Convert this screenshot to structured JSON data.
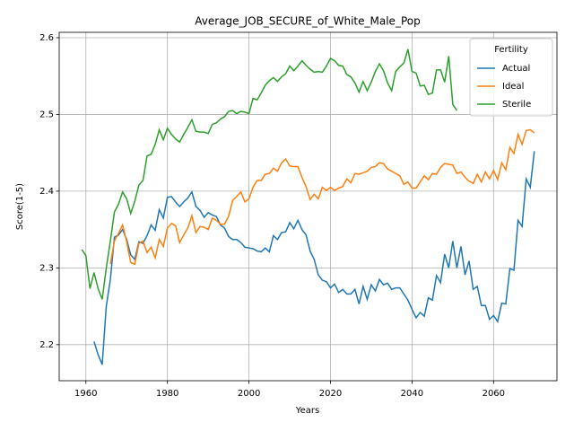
{
  "chart_data": {
    "type": "line",
    "title": "Average_JOB_SECURE_of_White_Male_Pop",
    "xlabel": "Years",
    "ylabel": "Score(1-5)",
    "x": [
      1959,
      1960,
      1961,
      1962,
      1963,
      1964,
      1965,
      1966,
      1967,
      1968,
      1969,
      1970,
      1971,
      1972,
      1973,
      1974,
      1975,
      1976,
      1977,
      1978,
      1979,
      1980,
      1981,
      1982,
      1983,
      1984,
      1985,
      1986,
      1987,
      1988,
      1989,
      1990,
      1991,
      1992,
      1993,
      1994,
      1995,
      1996,
      1997,
      1998,
      1999,
      2000,
      2001,
      2002,
      2003,
      2004,
      2005,
      2006,
      2007,
      2008,
      2009,
      2010,
      2011,
      2012,
      2013,
      2014,
      2015,
      2016,
      2017,
      2018,
      2019,
      2020,
      2021,
      2022,
      2023,
      2024,
      2025,
      2026,
      2027,
      2028,
      2029,
      2030,
      2031,
      2032,
      2033,
      2034,
      2035,
      2036,
      2037,
      2038,
      2039,
      2040,
      2041,
      2042,
      2043,
      2044,
      2045,
      2046,
      2047,
      2048,
      2049,
      2050,
      2051,
      2052,
      2053,
      2054,
      2055,
      2056,
      2057,
      2058,
      2059,
      2060,
      2061,
      2062,
      2063,
      2064,
      2065,
      2066,
      2067,
      2068,
      2069,
      2070
    ],
    "series": [
      {
        "name": "Actual",
        "color": "#1f77b4",
        "values": [
          null,
          null,
          null,
          2.204,
          2.187,
          2.174,
          2.25,
          2.285,
          2.34,
          2.343,
          2.35,
          2.337,
          2.317,
          2.311,
          2.334,
          2.332,
          2.342,
          2.356,
          2.349,
          2.376,
          2.365,
          2.392,
          2.393,
          2.386,
          2.38,
          2.386,
          2.391,
          2.399,
          2.38,
          2.375,
          2.366,
          2.372,
          2.369,
          2.367,
          2.356,
          2.352,
          2.341,
          2.337,
          2.337,
          2.333,
          2.327,
          2.326,
          2.325,
          2.322,
          2.321,
          2.326,
          2.321,
          2.342,
          2.337,
          2.346,
          2.347,
          2.359,
          2.351,
          2.362,
          2.35,
          2.343,
          2.322,
          2.311,
          2.291,
          2.284,
          2.282,
          2.274,
          2.279,
          2.268,
          2.272,
          2.266,
          2.266,
          2.272,
          2.253,
          2.276,
          2.259,
          2.278,
          2.27,
          2.285,
          2.278,
          2.28,
          2.272,
          2.274,
          2.274,
          2.266,
          2.258,
          2.246,
          2.235,
          2.242,
          2.237,
          2.261,
          2.258,
          2.29,
          2.281,
          2.318,
          2.3,
          2.335,
          2.3,
          2.328,
          2.291,
          2.309,
          2.272,
          2.276,
          2.251,
          2.251,
          2.233,
          2.238,
          2.23,
          2.254,
          2.253,
          2.299,
          2.297,
          2.362,
          2.354,
          2.416,
          2.405,
          2.452
        ]
      },
      {
        "name": "Ideal",
        "color": "#ff7f0e",
        "values": [
          null,
          null,
          null,
          null,
          null,
          null,
          null,
          2.305,
          2.335,
          2.345,
          2.356,
          2.334,
          2.307,
          2.305,
          2.332,
          2.335,
          2.32,
          2.327,
          2.313,
          2.337,
          2.328,
          2.352,
          2.358,
          2.355,
          2.333,
          2.343,
          2.352,
          2.368,
          2.346,
          2.354,
          2.353,
          2.35,
          2.365,
          2.362,
          2.357,
          2.357,
          2.367,
          2.388,
          2.393,
          2.399,
          2.386,
          2.39,
          2.405,
          2.414,
          2.414,
          2.422,
          2.423,
          2.43,
          2.426,
          2.437,
          2.442,
          2.433,
          2.432,
          2.432,
          2.418,
          2.406,
          2.389,
          2.396,
          2.39,
          2.405,
          2.401,
          2.405,
          2.401,
          2.404,
          2.406,
          2.416,
          2.411,
          2.423,
          2.422,
          2.424,
          2.426,
          2.431,
          2.432,
          2.437,
          2.436,
          2.429,
          2.426,
          2.423,
          2.42,
          2.409,
          2.412,
          2.404,
          2.404,
          2.412,
          2.42,
          2.415,
          2.423,
          2.422,
          2.431,
          2.436,
          2.435,
          2.434,
          2.423,
          2.425,
          2.418,
          2.413,
          2.41,
          2.422,
          2.412,
          2.425,
          2.416,
          2.427,
          2.415,
          2.437,
          2.428,
          2.457,
          2.449,
          2.474,
          2.461,
          2.479,
          2.48,
          2.476
        ]
      },
      {
        "name": "Sterile",
        "color": "#2ca02c",
        "values": [
          2.324,
          2.316,
          2.273,
          2.294,
          2.273,
          2.259,
          2.3,
          2.335,
          2.373,
          2.383,
          2.399,
          2.39,
          2.371,
          2.387,
          2.408,
          2.414,
          2.446,
          2.448,
          2.461,
          2.48,
          2.467,
          2.482,
          2.474,
          2.468,
          2.464,
          2.474,
          2.483,
          2.493,
          2.478,
          2.477,
          2.477,
          2.475,
          2.487,
          2.489,
          2.494,
          2.497,
          2.504,
          2.505,
          2.501,
          2.504,
          2.503,
          2.501,
          2.521,
          2.519,
          2.528,
          2.538,
          2.544,
          2.548,
          2.543,
          2.549,
          2.553,
          2.563,
          2.557,
          2.563,
          2.57,
          2.564,
          2.559,
          2.555,
          2.556,
          2.555,
          2.563,
          2.573,
          2.57,
          2.564,
          2.563,
          2.552,
          2.549,
          2.541,
          2.529,
          2.543,
          2.531,
          2.542,
          2.556,
          2.566,
          2.557,
          2.541,
          2.531,
          2.556,
          2.562,
          2.567,
          2.585,
          2.556,
          2.554,
          2.537,
          2.538,
          2.526,
          2.528,
          2.558,
          2.558,
          2.542,
          2.576,
          2.513,
          2.505,
          null,
          null,
          null,
          null,
          null,
          null,
          null,
          null,
          null,
          null,
          null,
          null,
          null,
          null,
          null,
          null,
          null,
          null,
          null
        ]
      }
    ],
    "xlim": [
      1953.45,
      2075.55
    ],
    "xticks": [
      1960,
      1980,
      2000,
      2020,
      2040,
      2060
    ],
    "ylim": [
      2.153,
      2.607
    ],
    "yticks": [
      2.2,
      2.3,
      2.4,
      2.5,
      2.6
    ],
    "grid": true,
    "legend_title": "Fertility",
    "legend_position": "upper right"
  }
}
